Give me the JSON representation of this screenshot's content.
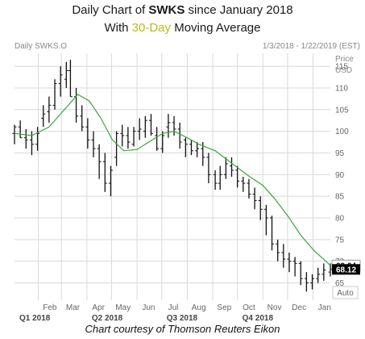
{
  "title": {
    "line1_prefix": "Daily Chart of ",
    "ticker": "SWKS",
    "line1_suffix": " since January 2018",
    "line2_prefix": "With ",
    "ma_label": "30-Day",
    "line2_suffix": " Moving Average"
  },
  "header": {
    "instrument": "Daily SWKS.O",
    "date_range": "1/3/2018 - 1/22/2019 (EST)",
    "price_label": "Price",
    "currency_label": "USD"
  },
  "caption": "Chart courtesy of Thomson Reuters Eikon",
  "auto_button_label": "Auto",
  "colors": {
    "price": "#111111",
    "moving_average": "#3aa63a",
    "ma_title": "#b5bd1a",
    "ma_tag": "#ffffff",
    "last_tag": "#000000"
  },
  "chart_data": {
    "type": "line",
    "x_start": "2018-01-03",
    "x_end": "2019-01-22",
    "x_months": [
      "Feb",
      "Mar",
      "Apr",
      "May",
      "Jun",
      "Jul",
      "Aug",
      "Sep",
      "Oct",
      "Nov",
      "Dec",
      "Jan"
    ],
    "x_quarters": [
      "Q1 2018",
      "Q2 2018",
      "Q3 2018",
      "Q4 2018"
    ],
    "y_ticks": [
      65,
      70,
      75,
      80,
      85,
      90,
      95,
      100,
      105,
      110,
      115
    ],
    "ylim": [
      61,
      118
    ],
    "last_price_label": "68.12",
    "moving_average_label": "69.04",
    "series": [
      {
        "type": "ohlc",
        "x": [
          "2018-01-03",
          "2018-01-10",
          "2018-01-17",
          "2018-01-24",
          "2018-01-31",
          "2018-02-07",
          "2018-02-14",
          "2018-02-21",
          "2018-02-28",
          "2018-03-07",
          "2018-03-12",
          "2018-03-19",
          "2018-03-26",
          "2018-04-02",
          "2018-04-09",
          "2018-04-16",
          "2018-04-23",
          "2018-04-30",
          "2018-05-07",
          "2018-05-14",
          "2018-05-21",
          "2018-05-28",
          "2018-06-04",
          "2018-06-11",
          "2018-06-18",
          "2018-06-25",
          "2018-07-02",
          "2018-07-09",
          "2018-07-16",
          "2018-07-23",
          "2018-07-30",
          "2018-08-06",
          "2018-08-13",
          "2018-08-20",
          "2018-08-27",
          "2018-09-04",
          "2018-09-10",
          "2018-09-17",
          "2018-09-24",
          "2018-10-01",
          "2018-10-08",
          "2018-10-15",
          "2018-10-22",
          "2018-10-29",
          "2018-11-05",
          "2018-11-12",
          "2018-11-19",
          "2018-11-26",
          "2018-12-03",
          "2018-12-10",
          "2018-12-17",
          "2018-12-24",
          "2018-12-31",
          "2019-01-07",
          "2019-01-14",
          "2019-01-22"
        ],
        "open": [
          99.5,
          101.0,
          98.5,
          98.0,
          97.0,
          103.0,
          104.5,
          106.0,
          111.0,
          112.0,
          114.0,
          108.0,
          103.5,
          101.0,
          98.0,
          96.0,
          93.0,
          88.0,
          94.0,
          99.5,
          99.0,
          97.0,
          100.0,
          100.0,
          102.5,
          99.0,
          96.0,
          101.0,
          102.0,
          100.5,
          98.0,
          97.0,
          95.5,
          96.0,
          94.0,
          90.0,
          88.0,
          90.0,
          92.0,
          91.0,
          88.5,
          88.0,
          85.5,
          84.0,
          82.0,
          80.0,
          74.0,
          72.0,
          70.5,
          70.0,
          69.5,
          66.0,
          65.0,
          66.0,
          67.0,
          67.5
        ],
        "high": [
          101.5,
          102.5,
          100.5,
          100.0,
          101.0,
          106.0,
          108.0,
          112.0,
          115.0,
          116.0,
          116.5,
          110.0,
          106.0,
          103.0,
          100.0,
          97.0,
          95.0,
          92.0,
          100.0,
          101.5,
          101.0,
          101.0,
          103.0,
          103.5,
          104.0,
          101.0,
          100.0,
          104.0,
          103.5,
          102.0,
          98.5,
          98.0,
          97.5,
          97.5,
          95.0,
          91.0,
          92.0,
          94.0,
          94.0,
          92.0,
          89.5,
          89.0,
          87.0,
          85.0,
          83.0,
          80.5,
          75.0,
          74.0,
          72.0,
          71.0,
          70.0,
          67.5,
          67.0,
          68.5,
          69.5,
          69.5
        ],
        "low": [
          97.0,
          98.5,
          96.0,
          94.5,
          95.5,
          101.0,
          102.0,
          105.0,
          108.0,
          110.0,
          108.0,
          102.0,
          100.0,
          96.0,
          94.0,
          89.0,
          86.0,
          85.0,
          92.0,
          96.5,
          96.0,
          96.5,
          98.0,
          98.5,
          99.0,
          95.5,
          95.0,
          98.5,
          99.0,
          96.0,
          94.0,
          94.5,
          94.0,
          92.0,
          88.0,
          86.5,
          86.5,
          89.0,
          89.5,
          87.0,
          86.0,
          84.5,
          82.0,
          79.5,
          76.0,
          72.5,
          70.0,
          68.5,
          67.5,
          66.5,
          64.5,
          63.0,
          63.5,
          65.0,
          65.5,
          66.5
        ],
        "close": [
          101.0,
          98.5,
          98.0,
          97.0,
          99.5,
          104.0,
          106.0,
          111.0,
          113.0,
          114.0,
          108.0,
          103.5,
          101.0,
          98.0,
          96.0,
          93.0,
          88.0,
          91.0,
          99.5,
          99.0,
          97.5,
          100.0,
          100.5,
          102.5,
          99.5,
          96.0,
          99.0,
          102.0,
          100.5,
          97.5,
          97.0,
          95.5,
          96.0,
          94.0,
          90.0,
          88.0,
          90.0,
          92.5,
          91.0,
          88.5,
          88.0,
          85.5,
          84.0,
          82.0,
          80.0,
          74.0,
          72.0,
          70.5,
          70.0,
          69.5,
          66.0,
          65.0,
          66.0,
          67.0,
          68.0,
          68.12
        ]
      },
      {
        "type": "line",
        "x": [
          "2018-01-03",
          "2018-01-24",
          "2018-02-14",
          "2018-03-07",
          "2018-03-21",
          "2018-04-04",
          "2018-04-18",
          "2018-05-02",
          "2018-05-16",
          "2018-06-01",
          "2018-06-15",
          "2018-07-02",
          "2018-07-16",
          "2018-08-01",
          "2018-08-15",
          "2018-09-04",
          "2018-09-18",
          "2018-10-02",
          "2018-10-16",
          "2018-11-01",
          "2018-11-15",
          "2018-12-03",
          "2018-12-17",
          "2019-01-02",
          "2019-01-22"
        ],
        "values": [
          99.5,
          99.0,
          101.0,
          105.5,
          108.5,
          107.0,
          103.0,
          98.0,
          95.5,
          95.8,
          97.5,
          99.5,
          100.0,
          98.5,
          97.0,
          95.5,
          93.5,
          91.5,
          89.5,
          87.5,
          84.5,
          80.0,
          76.0,
          72.5,
          69.04
        ]
      }
    ]
  }
}
